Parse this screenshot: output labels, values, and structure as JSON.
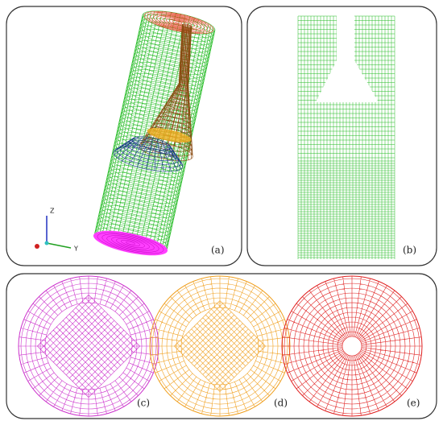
{
  "panels": {
    "a": "(a)",
    "b": "(b)",
    "c": "(c)",
    "d": "(d)",
    "e": "(e)"
  },
  "axes": {
    "z": "Z",
    "y": "Y"
  }
}
